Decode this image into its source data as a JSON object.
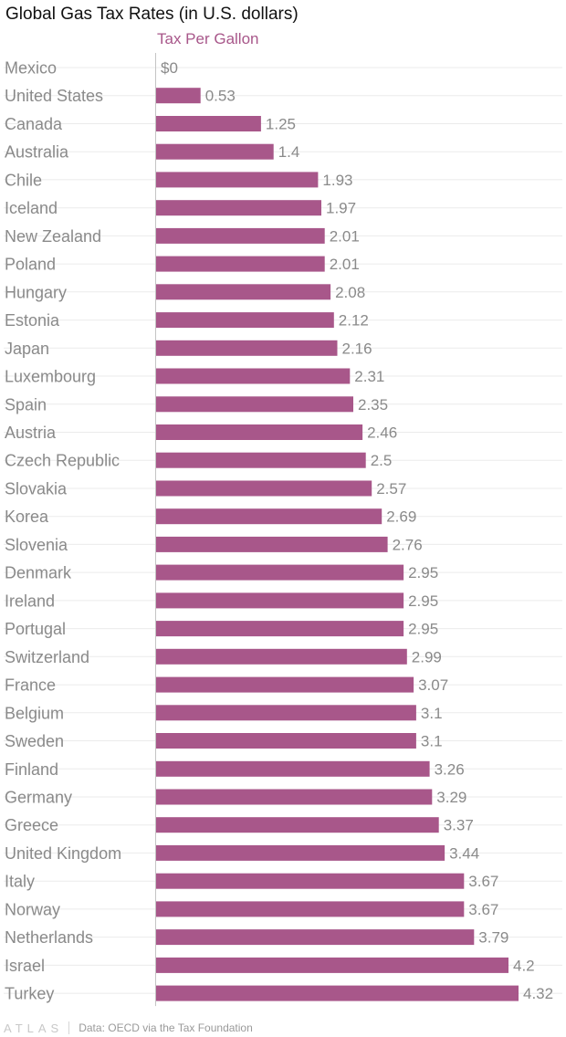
{
  "chart_data": {
    "type": "bar",
    "orientation": "horizontal",
    "title": "Global Gas Tax Rates (in U.S. dollars)",
    "series_name": "Tax Per Gallon",
    "categories": [
      "Mexico",
      "United States",
      "Canada",
      "Australia",
      "Chile",
      "Iceland",
      "New Zealand",
      "Poland",
      "Hungary",
      "Estonia",
      "Japan",
      "Luxembourg",
      "Spain",
      "Austria",
      "Czech Republic",
      "Slovakia",
      "Korea",
      "Slovenia",
      "Denmark",
      "Ireland",
      "Portugal",
      "Switzerland",
      "France",
      "Belgium",
      "Sweden",
      "Finland",
      "Germany",
      "Greece",
      "United Kingdom",
      "Italy",
      "Norway",
      "Netherlands",
      "Israel",
      "Turkey"
    ],
    "values": [
      0,
      0.53,
      1.25,
      1.4,
      1.93,
      1.97,
      2.01,
      2.01,
      2.08,
      2.12,
      2.16,
      2.31,
      2.35,
      2.46,
      2.5,
      2.57,
      2.69,
      2.76,
      2.95,
      2.95,
      2.95,
      2.99,
      3.07,
      3.1,
      3.1,
      3.26,
      3.29,
      3.37,
      3.44,
      3.67,
      3.67,
      3.79,
      4.2,
      4.32
    ],
    "value_labels": [
      "$0",
      "0.53",
      "1.25",
      "1.4",
      "1.93",
      "1.97",
      "2.01",
      "2.01",
      "2.08",
      "2.12",
      "2.16",
      "2.31",
      "2.35",
      "2.46",
      "2.5",
      "2.57",
      "2.69",
      "2.76",
      "2.95",
      "2.95",
      "2.95",
      "2.99",
      "3.07",
      "3.1",
      "3.1",
      "3.26",
      "3.29",
      "3.37",
      "3.44",
      "3.67",
      "3.67",
      "3.79",
      "4.2",
      "4.32"
    ],
    "xlim": [
      0,
      4.32
    ],
    "grid": true,
    "legend": "none"
  },
  "colors": {
    "bar": "#A8578A",
    "series_label": "#A8578A",
    "category_text": "#8A8A8A",
    "value_text": "#8A8A8A",
    "gridline": "#EBEBEB",
    "axis": "#C4C4C4"
  },
  "footer": {
    "logo": "ATLAS",
    "source": "Data: OECD via the Tax Foundation"
  }
}
